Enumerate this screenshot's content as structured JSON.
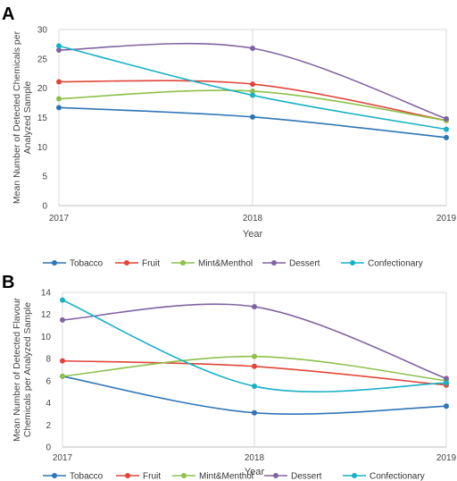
{
  "chart_data": [
    {
      "type": "line",
      "panel": "A",
      "x": [
        "2017",
        "2018",
        "2019"
      ],
      "xlabel": "Year",
      "ylabel": [
        "Mean Number of Detected Chemicals per",
        "Analyzed Sample"
      ],
      "ylim": [
        0,
        30
      ],
      "yticks": [
        0,
        5,
        10,
        15,
        20,
        25,
        30
      ],
      "grid": "vertical",
      "legend": "bottom",
      "series": [
        {
          "name": "Tobacco",
          "color": "#2e75b6",
          "values": [
            16.7,
            15.1,
            11.6
          ]
        },
        {
          "name": "Fruit",
          "color": "#e0453a",
          "values": [
            21.1,
            20.7,
            14.5
          ]
        },
        {
          "name": "Mint&Menthol",
          "color": "#8dc14a",
          "values": [
            18.2,
            19.5,
            14.5
          ]
        },
        {
          "name": "Dessert",
          "color": "#8064a2",
          "values": [
            26.5,
            26.8,
            14.8
          ]
        },
        {
          "name": "Confectionary",
          "color": "#17b1c5",
          "values": [
            27.2,
            18.8,
            13.0
          ]
        }
      ]
    },
    {
      "type": "line",
      "panel": "B",
      "x": [
        "2017",
        "2018",
        "2019"
      ],
      "xlabel": "Year",
      "ylabel": [
        "Mean Number of Detected Flavour",
        "Chemicals per Analyzed Sample"
      ],
      "ylim": [
        0,
        14
      ],
      "yticks": [
        0,
        2,
        4,
        6,
        8,
        10,
        12,
        14
      ],
      "grid": "vertical",
      "legend": "bottom",
      "series": [
        {
          "name": "Tobacco",
          "color": "#2e75b6",
          "values": [
            6.4,
            3.1,
            3.7
          ]
        },
        {
          "name": "Fruit",
          "color": "#e0453a",
          "values": [
            7.8,
            7.3,
            5.6
          ]
        },
        {
          "name": "Mint&Menthol",
          "color": "#8dc14a",
          "values": [
            6.4,
            8.2,
            6.0
          ]
        },
        {
          "name": "Dessert",
          "color": "#8064a2",
          "values": [
            11.5,
            12.7,
            6.2
          ]
        },
        {
          "name": "Confectionary",
          "color": "#17b1c5",
          "values": [
            13.3,
            5.5,
            5.8
          ]
        }
      ]
    }
  ]
}
